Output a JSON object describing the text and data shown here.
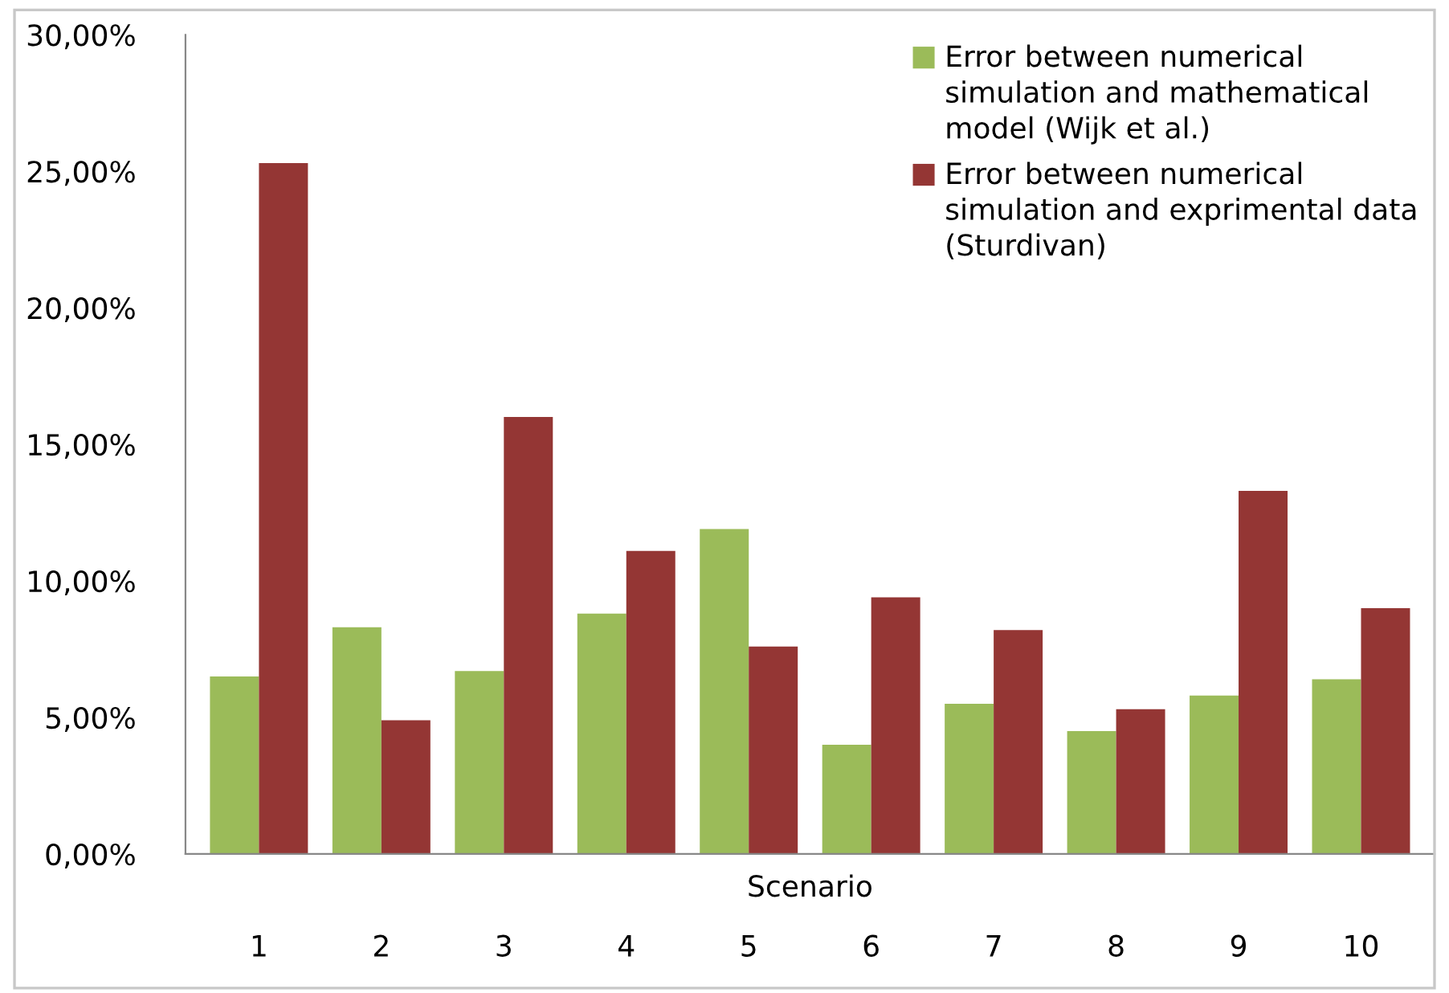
{
  "chart_data": {
    "type": "bar",
    "xlabel": "Scenario",
    "categories": [
      "1",
      "2",
      "3",
      "4",
      "5",
      "6",
      "7",
      "8",
      "9",
      "10"
    ],
    "series": [
      {
        "name": "Error between numerical simulation and mathematical model (Wijk et al.)",
        "color": "#9bbb59",
        "values": [
          6.5,
          8.3,
          6.7,
          8.8,
          11.9,
          4.0,
          5.5,
          4.5,
          5.8,
          6.4
        ]
      },
      {
        "name": "Error between numerical simulation and exprimental data (Sturdivan)",
        "color": "#943634",
        "values": [
          25.3,
          4.9,
          16.0,
          11.1,
          7.6,
          9.4,
          8.2,
          5.3,
          13.3,
          9.0
        ]
      }
    ],
    "ylim": [
      0,
      30
    ],
    "yticks": [
      {
        "value": 0,
        "label": "0,00%"
      },
      {
        "value": 5,
        "label": "5,00%"
      },
      {
        "value": 10,
        "label": "10,00%"
      },
      {
        "value": 15,
        "label": "15,00%"
      },
      {
        "value": 20,
        "label": "20,00%"
      },
      {
        "value": 25,
        "label": "25,00%"
      },
      {
        "value": 30,
        "label": "30,00%"
      }
    ],
    "grid": false,
    "legend": "top right"
  }
}
